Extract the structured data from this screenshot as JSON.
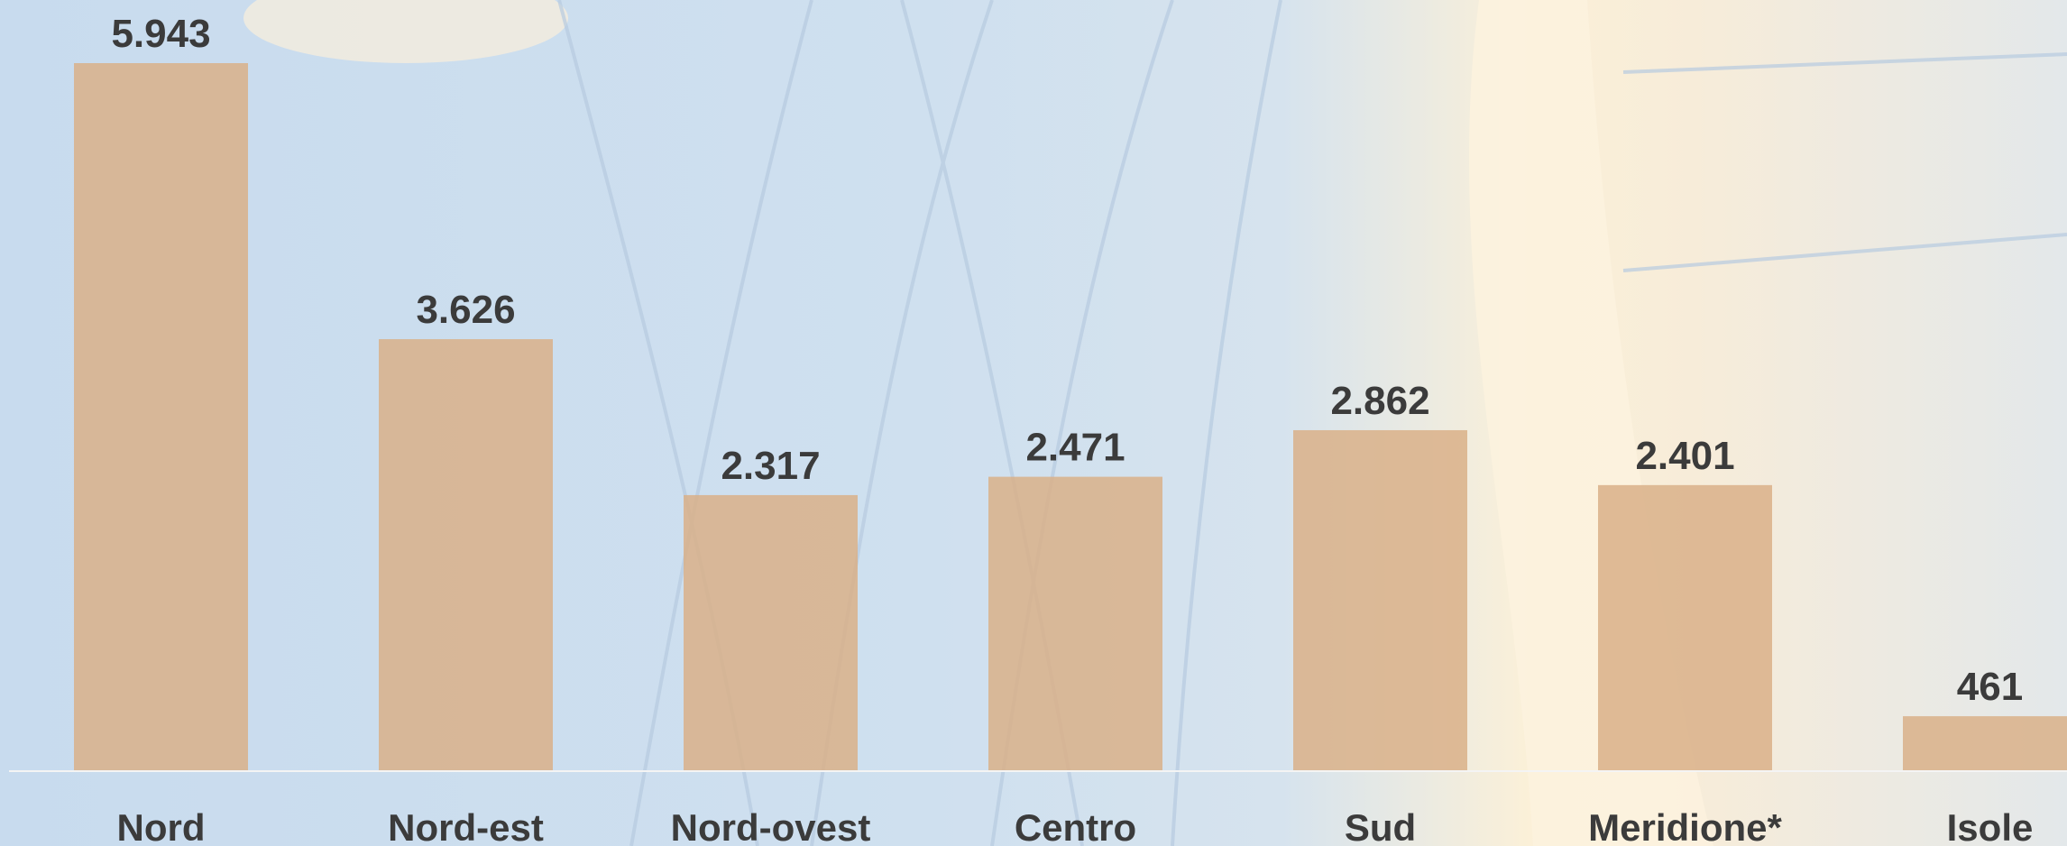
{
  "chart_data": {
    "type": "bar",
    "categories": [
      "Nord",
      "Nord-est",
      "Nord-ovest",
      "Centro",
      "Sud",
      "Meridione*",
      "Isole"
    ],
    "values": [
      5943,
      3626,
      2317,
      2471,
      2862,
      2401,
      461
    ],
    "value_labels": [
      "5.943",
      "3.626",
      "2.317",
      "2.471",
      "2.862",
      "2.401",
      "461"
    ],
    "color": "#d9b088"
  }
}
